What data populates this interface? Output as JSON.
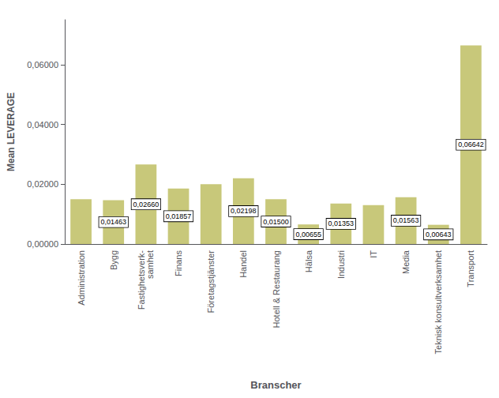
{
  "chart_data": {
    "type": "bar",
    "categories": [
      "Administration",
      "Bygg",
      "Fastighetsverk-\nsamhet",
      "Finans",
      "Företagstjänster",
      "Handel",
      "Hotell & Restaurang",
      "Hälsa",
      "Industri",
      "IT",
      "Media",
      "Teknisk konsultverksamhet",
      "Transport"
    ],
    "values": [
      0.015,
      0.01463,
      0.0266,
      0.01857,
      0.02,
      0.02198,
      0.015,
      0.00655,
      0.01353,
      0.013,
      0.01563,
      0.00643,
      0.06642
    ],
    "color": "#c8c87a",
    "xlabel": "Branscher",
    "ylabel": "Mean LEVERAGE",
    "ylim": [
      0,
      0.075
    ],
    "yticks": [
      {
        "value": 0.0,
        "label": "0,00000"
      },
      {
        "value": 0.02,
        "label": "0,02000"
      },
      {
        "value": 0.04,
        "label": "0,04000"
      },
      {
        "value": 0.06,
        "label": "0,06000"
      }
    ],
    "grid": false,
    "annotations": [
      {
        "category": "Bygg",
        "text": "0,01463"
      },
      {
        "category": "Fastighetsverk-\nsamhet",
        "text": "0,02660"
      },
      {
        "category": "Finans",
        "text": "0,01857"
      },
      {
        "category": "Handel",
        "text": "0,02198"
      },
      {
        "category": "Hotell & Restaurang",
        "text": "0,01500"
      },
      {
        "category": "Hälsa",
        "text": "0,00655"
      },
      {
        "category": "Industri",
        "text": "0,01353"
      },
      {
        "category": "Media",
        "text": "0,01563"
      },
      {
        "category": "Teknisk konsultverksamhet",
        "text": "0,00643"
      },
      {
        "category": "Transport",
        "text": "0,06642"
      }
    ]
  }
}
